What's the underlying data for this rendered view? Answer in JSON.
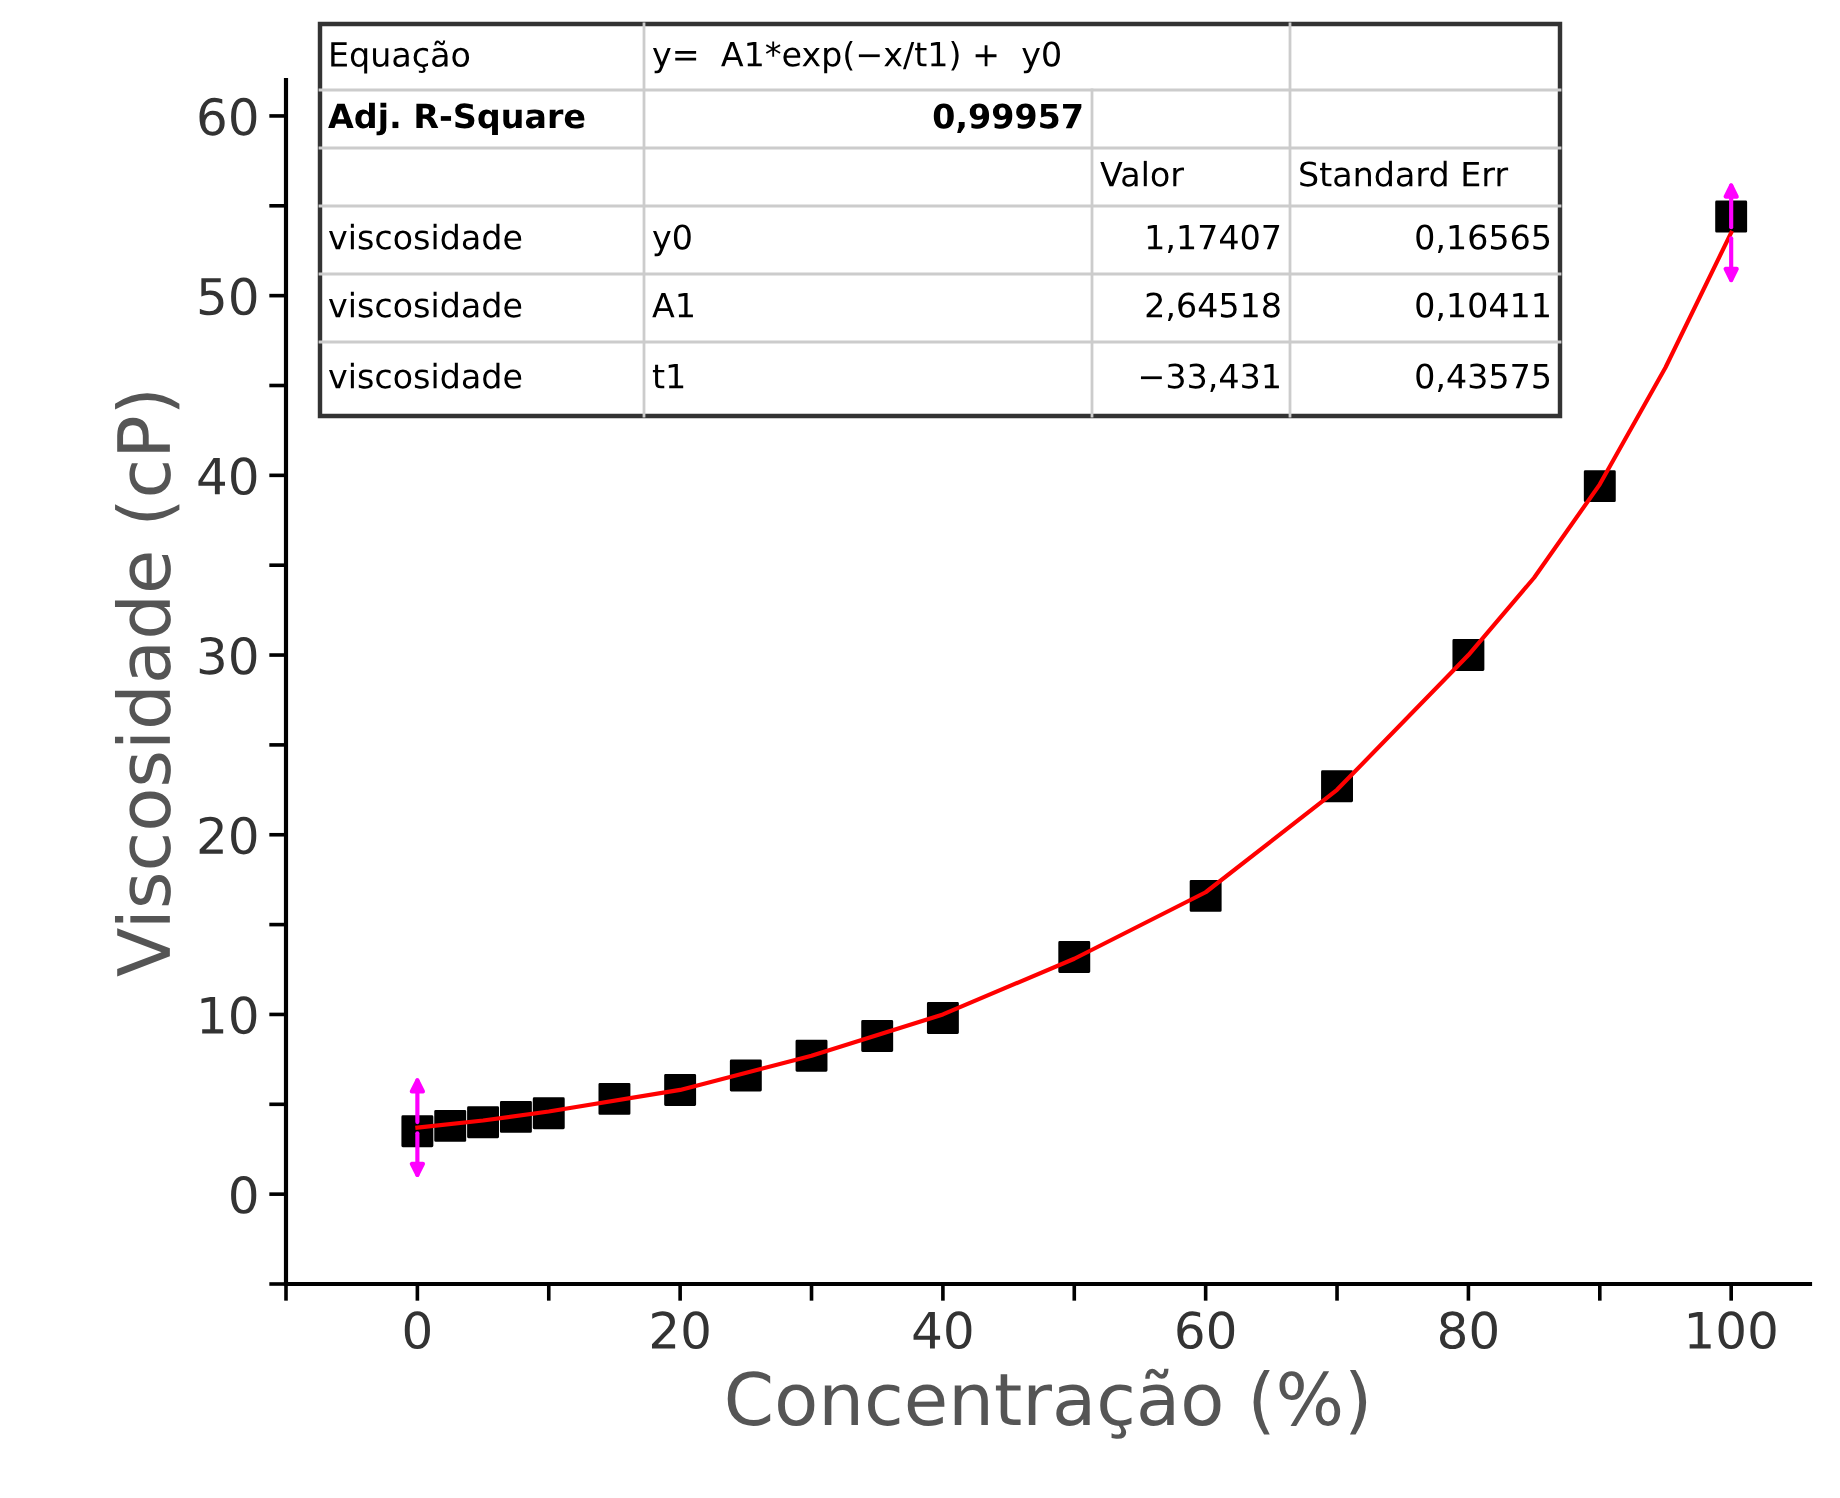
{
  "chart_data": {
    "type": "scatter",
    "xlabel": "Concentração (%)",
    "ylabel": "Viscosidade (cP)",
    "xlim": [
      -10,
      106
    ],
    "ylim": [
      -5,
      62
    ],
    "xticks": [
      {
        "value": -10,
        "label": null
      },
      0,
      {
        "value": 10,
        "label": null
      },
      20,
      {
        "value": 30,
        "label": null
      },
      40,
      {
        "value": 50,
        "label": null
      },
      60,
      {
        "value": 70,
        "label": null
      },
      80,
      {
        "value": 90,
        "label": null
      },
      100
    ],
    "yticks": [
      {
        "value": -5,
        "label": null
      },
      0,
      {
        "value": 5,
        "label": null
      },
      10,
      {
        "value": 15,
        "label": null
      },
      20,
      {
        "value": 25,
        "label": null
      },
      30,
      {
        "value": 35,
        "label": null
      },
      40,
      {
        "value": 45,
        "label": null
      },
      50,
      {
        "value": 55,
        "label": null
      },
      60
    ],
    "legend": false,
    "series": [
      {
        "color": "#000000",
        "marker": "square",
        "x": [
          0,
          2.5,
          5,
          7.5,
          10,
          15,
          20,
          25,
          30,
          35,
          40,
          50,
          60,
          70,
          80,
          90,
          100
        ],
        "values": [
          3.5,
          3.8,
          4.0,
          4.3,
          4.5,
          5.3,
          5.8,
          6.6,
          7.7,
          8.8,
          9.8,
          13.2,
          16.6,
          22.7,
          30.0,
          39.4,
          54.4
        ]
      },
      {
        "type": "line",
        "color": "#ff0000",
        "marker": "none",
        "line_style": "solid",
        "x": [
          0,
          5,
          10,
          20,
          30,
          40,
          50,
          60,
          70,
          80,
          85,
          90,
          95,
          100
        ],
        "values": [
          3.7,
          4.1,
          4.6,
          5.8,
          7.7,
          10.0,
          13.1,
          16.8,
          22.5,
          30.0,
          34.3,
          39.5,
          46.0,
          53.5
        ]
      }
    ],
    "annotations": [
      "Equação",
      "y=  A1*exp(−x/t1) +  y0",
      "Adj. R-Square",
      "0,99957",
      "Valor",
      "Standard Err",
      "viscosidade",
      "y0",
      "1,17407",
      "0,16565",
      "viscosidade",
      "A1",
      "2,64518",
      "0,10411",
      "viscosidade",
      "t1",
      "−33,431",
      "0,43575"
    ]
  }
}
